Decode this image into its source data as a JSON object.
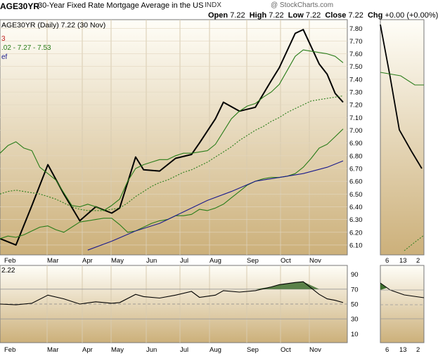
{
  "header": {
    "ticker": "AGE30YR",
    "description": "30-Year Fixed Rate Mortgage Average in the US",
    "exchange": "INDX",
    "copyright": "@ StockCharts.com",
    "open_label": "Open",
    "open": "7.22",
    "high_label": "High",
    "high": "7.22",
    "low_label": "Low",
    "low": "7.22",
    "close_label": "Close",
    "close": "7.22",
    "chg_label": "Chg",
    "chg": "+0.00 (+0.00%)"
  },
  "legend": {
    "line1": "AGE30YR (Daily) 7.22 (30 Nov)",
    "line2": "3",
    "line3": ".02 - 7.27 - 7.53",
    "line4": "ef"
  },
  "rsi_panel": {
    "label": "2.22"
  },
  "right_panel": {
    "x_ticks": [
      "6",
      "13",
      "2"
    ]
  },
  "colors": {
    "price": "#000000",
    "bollinger": "#2a7d1a",
    "sma50": "#2a7d1a",
    "sma200": "#1a1a8c",
    "bg_top": "#fffef8",
    "bg_bottom": "#ccb07a",
    "rsi_fill": "#3f6f2f"
  },
  "chart_data": [
    {
      "type": "line",
      "title": "30-Year Fixed Rate Mortgage Average in the US",
      "x_ticks": [
        "Feb",
        "Mar",
        "Apr",
        "May",
        "Jun",
        "Jul",
        "Aug",
        "Sep",
        "Oct",
        "Nov"
      ],
      "y_ticks": [
        "6.10",
        "6.20",
        "6.30",
        "6.40",
        "6.50",
        "6.60",
        "6.70",
        "6.80",
        "6.90",
        "7.00",
        "7.10",
        "7.20",
        "7.30",
        "7.40",
        "7.50",
        "7.60",
        "7.70",
        "7.80"
      ],
      "ylim": [
        6.05,
        7.84
      ],
      "x_range": [
        0,
        43
      ],
      "series": [
        {
          "name": "price",
          "style": "solid",
          "x": [
            0,
            2,
            4,
            6,
            8,
            10,
            12,
            14,
            15,
            17,
            18,
            20,
            22,
            24,
            25,
            27,
            28,
            30,
            32,
            34,
            35,
            37,
            38,
            40,
            41,
            42,
            43
          ],
          "y": [
            6.15,
            6.1,
            6.41,
            6.73,
            6.5,
            6.29,
            6.4,
            6.35,
            6.39,
            6.79,
            6.69,
            6.68,
            6.78,
            6.81,
            6.9,
            7.09,
            7.22,
            7.15,
            7.18,
            7.39,
            7.49,
            7.76,
            7.79,
            7.52,
            7.44,
            7.29,
            7.22
          ]
        },
        {
          "name": "bollinger upper",
          "style": "solid",
          "x": [
            0,
            1,
            2,
            3,
            4,
            5,
            6,
            7,
            8,
            9,
            10,
            11,
            12,
            13,
            14,
            15,
            16,
            17,
            18,
            19,
            20,
            21,
            22,
            23,
            24,
            25,
            26,
            27,
            28,
            29,
            30,
            31,
            32,
            33,
            34,
            35,
            36,
            37,
            38,
            39,
            40,
            41,
            42,
            43
          ],
          "y": [
            6.82,
            6.88,
            6.91,
            6.86,
            6.84,
            6.71,
            6.66,
            6.61,
            6.51,
            6.41,
            6.4,
            6.42,
            6.4,
            6.37,
            6.41,
            6.46,
            6.6,
            6.7,
            6.73,
            6.75,
            6.77,
            6.77,
            6.8,
            6.82,
            6.82,
            6.83,
            6.84,
            6.89,
            6.99,
            7.09,
            7.15,
            7.19,
            7.21,
            7.26,
            7.3,
            7.36,
            7.47,
            7.58,
            7.63,
            7.62,
            7.61,
            7.6,
            7.58,
            7.53
          ]
        },
        {
          "name": "bollinger lower",
          "style": "solid",
          "x": [
            0,
            1,
            2,
            3,
            4,
            5,
            6,
            7,
            8,
            9,
            10,
            11,
            12,
            13,
            14,
            15,
            16,
            17,
            18,
            19,
            20,
            21,
            22,
            23,
            24,
            25,
            26,
            27,
            28,
            29,
            30,
            31,
            32,
            33,
            34,
            35,
            36,
            37,
            38,
            39,
            40,
            41,
            42,
            43
          ],
          "y": [
            6.15,
            6.17,
            6.16,
            6.18,
            6.21,
            6.24,
            6.25,
            6.22,
            6.2,
            6.24,
            6.28,
            6.29,
            6.3,
            6.31,
            6.31,
            6.26,
            6.2,
            6.21,
            6.24,
            6.27,
            6.29,
            6.3,
            6.33,
            6.33,
            6.34,
            6.38,
            6.37,
            6.39,
            6.42,
            6.47,
            6.52,
            6.57,
            6.6,
            6.62,
            6.63,
            6.63,
            6.64,
            6.66,
            6.71,
            6.78,
            6.86,
            6.89,
            6.95,
            7.01
          ]
        },
        {
          "name": "sma50",
          "style": "dotted",
          "x": [
            0,
            1,
            2,
            3,
            4,
            5,
            6,
            7,
            8,
            9,
            10,
            11,
            12,
            13,
            14,
            15,
            16,
            17,
            18,
            19,
            20,
            21,
            22,
            23,
            24,
            25,
            26,
            27,
            28,
            29,
            30,
            31,
            32,
            33,
            34,
            35,
            36,
            37,
            38,
            39,
            40,
            41,
            42,
            43
          ],
          "y": [
            6.5,
            6.52,
            6.53,
            6.52,
            6.51,
            6.5,
            6.48,
            6.46,
            6.43,
            6.4,
            6.38,
            6.37,
            6.37,
            6.37,
            6.38,
            6.39,
            6.43,
            6.48,
            6.52,
            6.56,
            6.59,
            6.61,
            6.64,
            6.67,
            6.69,
            6.72,
            6.75,
            6.79,
            6.83,
            6.87,
            6.92,
            6.96,
            7.0,
            7.03,
            7.07,
            7.1,
            7.14,
            7.17,
            7.2,
            7.23,
            7.24,
            7.25,
            7.26,
            7.27
          ]
        },
        {
          "name": "sma200",
          "style": "solid",
          "x": [
            11,
            14,
            17,
            20,
            23,
            26,
            29,
            32,
            35,
            38,
            41,
            43
          ],
          "y": [
            6.06,
            6.13,
            6.21,
            6.27,
            6.36,
            6.45,
            6.52,
            6.6,
            6.63,
            6.66,
            6.71,
            6.76
          ]
        }
      ]
    },
    {
      "type": "area",
      "title": "",
      "x_ticks": [
        "Feb",
        "Mar",
        "Apr",
        "May",
        "Jun",
        "Jul",
        "Aug",
        "Sep",
        "Oct",
        "Nov"
      ],
      "y_ticks": [
        "90",
        "70",
        "50",
        "30",
        "10"
      ],
      "ylim": [
        0,
        100
      ],
      "x_range": [
        0,
        43
      ],
      "reference_lines": [
        70,
        50,
        30
      ],
      "series": [
        {
          "name": "rsi",
          "x": [
            0,
            2,
            4,
            6,
            8,
            10,
            12,
            14,
            15,
            17,
            18,
            20,
            22,
            24,
            25,
            27,
            28,
            30,
            32,
            34,
            35,
            37,
            38,
            40,
            41,
            42,
            43
          ],
          "y": [
            50,
            49,
            51,
            62,
            57,
            50,
            53,
            51,
            52,
            63,
            60,
            58,
            62,
            67,
            59,
            62,
            68,
            66,
            68,
            73,
            76,
            79,
            80,
            63,
            57,
            55,
            52
          ]
        }
      ]
    }
  ]
}
